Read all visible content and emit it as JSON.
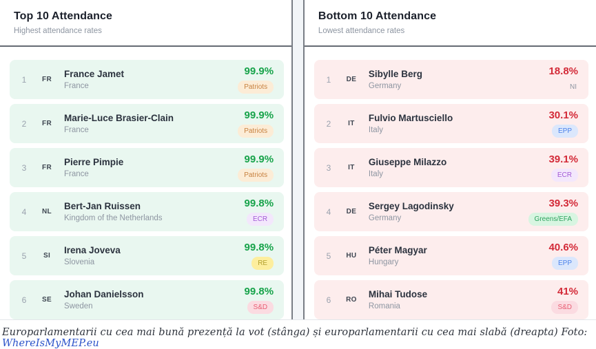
{
  "panels": [
    {
      "title": "Top 10 Attendance",
      "subtitle": "Highest attendance rates",
      "theme": "green",
      "rows": [
        {
          "rank": "1",
          "code": "FR",
          "name": "France Jamet",
          "country": "France",
          "value": "99.9%",
          "party": "Patriots",
          "party_class": "patriots"
        },
        {
          "rank": "2",
          "code": "FR",
          "name": "Marie-Luce Brasier-Clain",
          "country": "France",
          "value": "99.9%",
          "party": "Patriots",
          "party_class": "patriots"
        },
        {
          "rank": "3",
          "code": "FR",
          "name": "Pierre Pimpie",
          "country": "France",
          "value": "99.9%",
          "party": "Patriots",
          "party_class": "patriots"
        },
        {
          "rank": "4",
          "code": "NL",
          "name": "Bert-Jan Ruissen",
          "country": "Kingdom of the Netherlands",
          "value": "99.8%",
          "party": "ECR",
          "party_class": "ecr"
        },
        {
          "rank": "5",
          "code": "SI",
          "name": "Irena Joveva",
          "country": "Slovenia",
          "value": "99.8%",
          "party": "RE",
          "party_class": "re"
        },
        {
          "rank": "6",
          "code": "SE",
          "name": "Johan Danielsson",
          "country": "Sweden",
          "value": "99.8%",
          "party": "S&D",
          "party_class": "sd"
        }
      ]
    },
    {
      "title": "Bottom 10 Attendance",
      "subtitle": "Lowest attendance rates",
      "theme": "red",
      "rows": [
        {
          "rank": "1",
          "code": "DE",
          "name": "Sibylle Berg",
          "country": "Germany",
          "value": "18.8%",
          "party": "NI",
          "party_class": "ni"
        },
        {
          "rank": "2",
          "code": "IT",
          "name": "Fulvio Martusciello",
          "country": "Italy",
          "value": "30.1%",
          "party": "EPP",
          "party_class": "epp"
        },
        {
          "rank": "3",
          "code": "IT",
          "name": "Giuseppe Milazzo",
          "country": "Italy",
          "value": "39.1%",
          "party": "ECR",
          "party_class": "ecr"
        },
        {
          "rank": "4",
          "code": "DE",
          "name": "Sergey Lagodinsky",
          "country": "Germany",
          "value": "39.3%",
          "party": "Greens/EFA",
          "party_class": "greens"
        },
        {
          "rank": "5",
          "code": "HU",
          "name": "Péter Magyar",
          "country": "Hungary",
          "value": "40.6%",
          "party": "EPP",
          "party_class": "epp"
        },
        {
          "rank": "6",
          "code": "RO",
          "name": "Mihai Tudose",
          "country": "Romania",
          "value": "41%",
          "party": "S&D",
          "party_class": "sd"
        }
      ]
    }
  ],
  "caption": {
    "text": "Europarlamentarii cu cea mai bună prezență la vot (stânga) și europarlamentarii cu cea mai slabă (dreapta) Foto: ",
    "link_label": "WhereIsMyMEP.eu"
  },
  "colors": {
    "positive_value": "#17a34a",
    "negative_value": "#d32a38",
    "row_bg_green": "#e9f7f0",
    "row_bg_red": "#fdeded",
    "link": "#2a52c9"
  }
}
